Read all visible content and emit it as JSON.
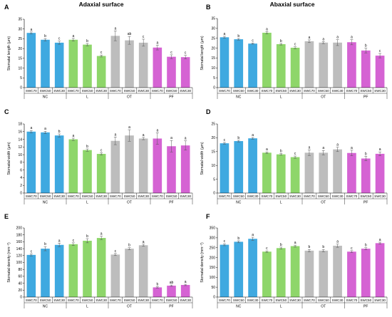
{
  "column_titles": [
    "Adaxial surface",
    "Abaxial surface"
  ],
  "group_labels": [
    "NC",
    "L",
    "OT",
    "PF"
  ],
  "group_colors": [
    "#3fa9e0",
    "#8ed66a",
    "#bdbdbd",
    "#d563d3"
  ],
  "chart_data": [
    {
      "panel": "A",
      "type": "bar",
      "categories": [
        "SWC70",
        "SWC50",
        "SWC30",
        "SWC70",
        "SWC50",
        "SWC30",
        "SWC70",
        "SWC50",
        "SWC30",
        "SWC70",
        "SWC50",
        "SWC30"
      ],
      "values": [
        28.0,
        24.5,
        23.0,
        24.5,
        22.0,
        16.2,
        26.5,
        24.2,
        23.0,
        20.5,
        15.8,
        15.6
      ],
      "errors": [
        0.5,
        0.6,
        0.8,
        0.7,
        0.6,
        0.5,
        2.5,
        2.0,
        1.8,
        1.2,
        1.0,
        0.9
      ],
      "letters": [
        "a",
        "b",
        "c",
        "a",
        "b",
        "c",
        "a",
        "ab",
        "c",
        "a",
        "c",
        "c"
      ],
      "ylabel": "Stomatal length (μm)",
      "ylim": [
        0,
        35
      ],
      "yticks": [
        0,
        5,
        10,
        15,
        20,
        25,
        30,
        35
      ]
    },
    {
      "panel": "B",
      "type": "bar",
      "categories": [
        "SWC70",
        "SWC50",
        "SWC30",
        "SWC70",
        "SWC50",
        "SWC30",
        "SWC70",
        "SWC50",
        "SWC30",
        "SWC70",
        "SWC50",
        "SWC30"
      ],
      "values": [
        25.5,
        24.5,
        22.3,
        27.8,
        22.0,
        20.2,
        23.5,
        22.8,
        22.8,
        23.0,
        18.8,
        16.2
      ],
      "errors": [
        0.5,
        0.4,
        0.3,
        0.6,
        0.4,
        0.5,
        0.7,
        0.5,
        1.5,
        1.3,
        1.2,
        1.1
      ],
      "letters": [
        "a",
        "b",
        "c",
        "a",
        "b",
        "c",
        "a",
        "a",
        "a",
        "a",
        "b",
        "c"
      ],
      "ylabel": "Stomatal length (μm)",
      "ylim": [
        0,
        35
      ],
      "yticks": [
        0,
        5,
        10,
        15,
        20,
        25,
        30,
        35
      ]
    },
    {
      "panel": "C",
      "type": "bar",
      "categories": [
        "SWC70",
        "SWC50",
        "SWC30",
        "SWC70",
        "SWC50",
        "SWC30",
        "SWC70",
        "SWC50",
        "SWC30",
        "SWC70",
        "SWC50",
        "SWC30"
      ],
      "values": [
        16.0,
        15.8,
        15.0,
        14.0,
        11.2,
        10.2,
        13.6,
        15.0,
        14.2,
        14.2,
        12.2,
        12.4
      ],
      "errors": [
        0.3,
        0.3,
        0.4,
        0.3,
        0.3,
        0.3,
        1.0,
        1.5,
        0.3,
        1.5,
        1.5,
        1.2
      ],
      "letters": [
        "a",
        "a",
        "b",
        "a",
        "b",
        "c",
        "a",
        "a",
        "a",
        "a",
        "a",
        "a"
      ],
      "ylabel": "Stomatal width (μm)",
      "ylim": [
        0,
        18
      ],
      "yticks": [
        0,
        2,
        4,
        6,
        8,
        10,
        12,
        14,
        16,
        18
      ]
    },
    {
      "panel": "D",
      "type": "bar",
      "categories": [
        "SWC70",
        "SWC50",
        "SWC30",
        "SWC70",
        "SWC50",
        "SWC30",
        "SWC70",
        "SWC50",
        "SWC30",
        "SWC70",
        "SWC50",
        "SWC30"
      ],
      "values": [
        18.0,
        18.8,
        19.8,
        14.6,
        14.0,
        13.0,
        14.6,
        14.6,
        15.8,
        14.5,
        12.5,
        14.2
      ],
      "errors": [
        0.3,
        0.3,
        0.3,
        0.3,
        0.3,
        0.4,
        1.0,
        0.8,
        0.8,
        1.0,
        0.8,
        0.7
      ],
      "letters": [
        "c",
        "b",
        "a",
        "a",
        "b",
        "c",
        "a",
        "a",
        "a",
        "a",
        "b",
        "a"
      ],
      "ylabel": "Stomatal width (μm)",
      "ylim": [
        0,
        25
      ],
      "yticks": [
        0,
        5,
        10,
        15,
        20,
        25
      ]
    },
    {
      "panel": "E",
      "type": "bar",
      "categories": [
        "SWC70",
        "SWC50",
        "SWC30",
        "SWC70",
        "SWC50",
        "SWC30",
        "SWC70",
        "SWC50",
        "SWC30",
        "SWC70",
        "SWC50",
        "SWC30"
      ],
      "values": [
        122,
        140,
        151,
        153,
        163,
        171,
        123,
        140,
        150,
        28,
        33,
        35
      ],
      "errors": [
        3,
        6,
        5,
        4,
        6,
        5,
        3,
        3,
        3,
        2,
        2,
        2
      ],
      "letters": [
        "c",
        "b",
        "a",
        "c",
        "b",
        "a",
        "c",
        "b",
        "a",
        "b",
        "ab",
        "a"
      ],
      "ylabel": "Stomatal density (mm⁻²)",
      "ylim": [
        0,
        200
      ],
      "yticks": [
        0,
        20,
        40,
        60,
        80,
        100,
        120,
        140,
        160,
        180,
        200
      ]
    },
    {
      "panel": "F",
      "type": "bar",
      "categories": [
        "SWC70",
        "SWC50",
        "SWC30",
        "SWC70",
        "SWC50",
        "SWC30",
        "SWC70",
        "SWC50",
        "SWC30",
        "SWC70",
        "SWC50",
        "SWC30"
      ],
      "values": [
        265,
        280,
        295,
        230,
        248,
        258,
        235,
        235,
        260,
        230,
        245,
        273
      ],
      "errors": [
        5,
        5,
        8,
        4,
        5,
        5,
        6,
        6,
        8,
        5,
        5,
        5
      ],
      "letters": [
        "c",
        "b",
        "a",
        "c",
        "b",
        "a",
        "b",
        "b",
        "a",
        "c",
        "b",
        "a"
      ],
      "ylabel": "Stomatal density (mm⁻²)",
      "ylim": [
        0,
        350
      ],
      "yticks": [
        0,
        50,
        100,
        150,
        200,
        250,
        300,
        350
      ]
    }
  ]
}
